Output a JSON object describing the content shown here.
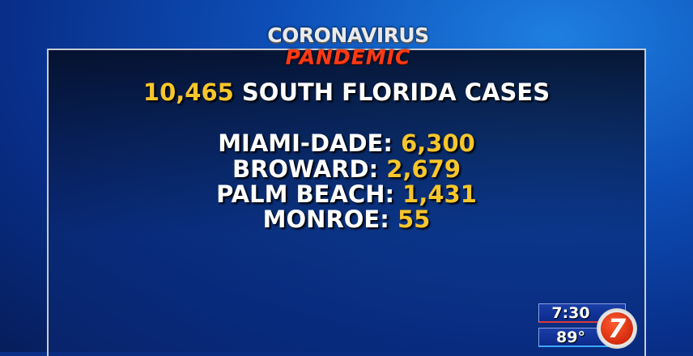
{
  "logo": {
    "line1": "CORONAVIRUS",
    "line2": "PANDEMIC"
  },
  "headline": {
    "count": "10,465",
    "label": "SOUTH FLORIDA CASES"
  },
  "counties": [
    {
      "name": "MIAMI-DADE:",
      "cases": "6,300"
    },
    {
      "name": "BROWARD:",
      "cases": "2,679"
    },
    {
      "name": "PALM BEACH:",
      "cases": "1,431"
    },
    {
      "name": "MONROE:",
      "cases": "55"
    }
  ],
  "bug": {
    "time": "7:30",
    "temperature": "89°",
    "channel": "7"
  },
  "colors": {
    "highlight": "#f7c62b",
    "logo_red": "#ff3a14",
    "background": "#0a2f86"
  }
}
